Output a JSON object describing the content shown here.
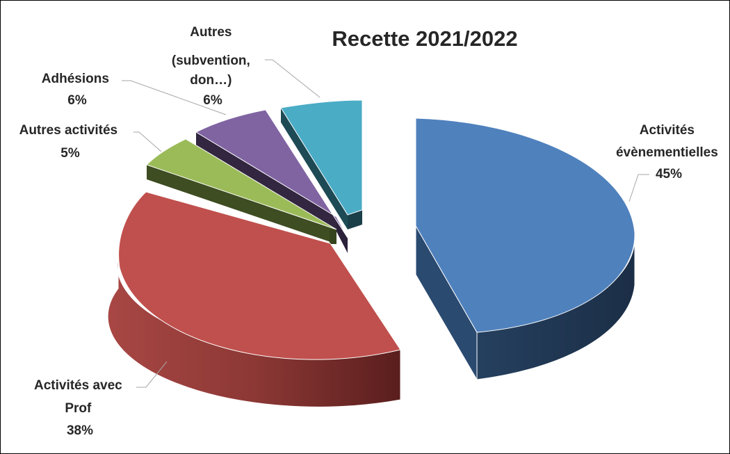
{
  "chart_data": {
    "type": "pie",
    "title": "Recette 2021/2022",
    "three_d": true,
    "exploded": true,
    "legend": "none",
    "slices": [
      {
        "label_lines": [
          "Activités",
          "évènementielles"
        ],
        "percent_label": "45%",
        "value": 45,
        "color": "#4F81BD",
        "side_color": "#1F3550"
      },
      {
        "label_lines": [
          "Activités avec",
          "Prof"
        ],
        "percent_label": "38%",
        "value": 38,
        "color": "#C0504D",
        "side_color": "#7A2D2B"
      },
      {
        "label_lines": [
          "Autres activités"
        ],
        "percent_label": "5%",
        "value": 5,
        "color": "#9BBB59",
        "side_color": "#3E4D22"
      },
      {
        "label_lines": [
          "Adhésions"
        ],
        "percent_label": "6%",
        "value": 6,
        "color": "#8064A2",
        "side_color": "#322640"
      },
      {
        "label_lines": [
          "Autres",
          "(subvention,",
          "don…)"
        ],
        "percent_label": "6%",
        "value": 6,
        "color": "#4BACC6",
        "side_color": "#1D4A55"
      }
    ]
  }
}
